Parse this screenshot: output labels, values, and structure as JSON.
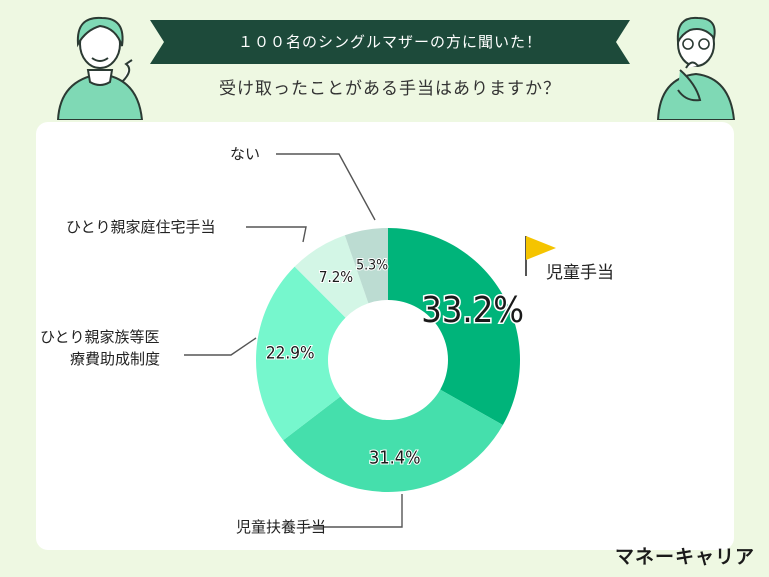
{
  "header": {
    "banner": "１００名のシングルマザーの方に聞いた！",
    "question": "受け取ったことがある手当はありますか？"
  },
  "brand": "マネーキャリア",
  "colors": {
    "banner_bg": "#1d4a3a",
    "highlight_flag": "#f5c400"
  },
  "chart_data": {
    "type": "pie",
    "donut": true,
    "slices": [
      {
        "label": "児童手当",
        "value": 33.2,
        "value_label": "33.2%",
        "color": "#00b47a",
        "highlight": true
      },
      {
        "label": "児童扶養手当",
        "value": 31.4,
        "value_label": "31.4%",
        "color": "#45dfac"
      },
      {
        "label": "ひとり親家族等医療費助成制度",
        "label_lines": [
          "ひとり親家族等医",
          "療費助成制度"
        ],
        "value": 22.9,
        "value_label": "22.9%",
        "color": "#76f7cd"
      },
      {
        "label": "ひとり親家庭住宅手当",
        "value": 7.2,
        "value_label": "7.2%",
        "color": "#d3f6e6"
      },
      {
        "label": "ない",
        "value": 5.3,
        "value_label": "5.3%",
        "color": "#bcdcd2"
      }
    ]
  }
}
